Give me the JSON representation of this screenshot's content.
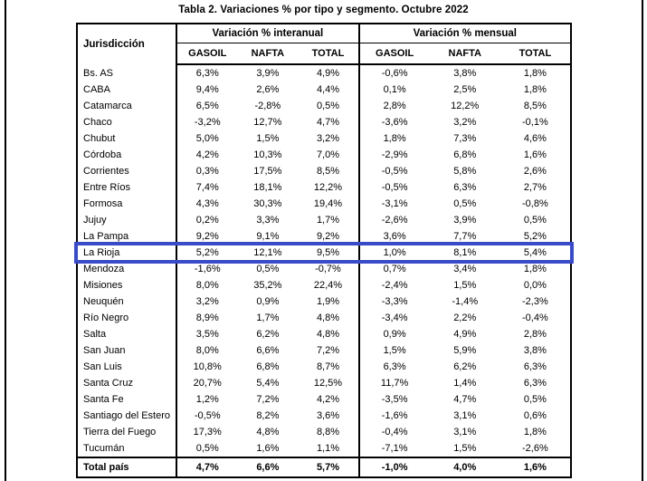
{
  "page": {
    "title": "Tabla 2. Variaciones % por tipo y segmento. Octubre 2022"
  },
  "table": {
    "col_jurisdiccion": "Jurisdicción",
    "groups": [
      {
        "label": "Variación % interanual",
        "columns": [
          "GASOIL",
          "NAFTA",
          "TOTAL"
        ]
      },
      {
        "label": "Variación % mensual",
        "columns": [
          "GASOIL",
          "NAFTA",
          "TOTAL"
        ]
      }
    ],
    "rows": [
      {
        "name": "Bs. AS",
        "values": [
          "6,3%",
          "3,9%",
          "4,9%",
          "-0,6%",
          "3,8%",
          "1,8%"
        ]
      },
      {
        "name": "CABA",
        "values": [
          "9,4%",
          "2,6%",
          "4,4%",
          "0,1%",
          "2,5%",
          "1,8%"
        ]
      },
      {
        "name": "Catamarca",
        "values": [
          "6,5%",
          "-2,8%",
          "0,5%",
          "2,8%",
          "12,2%",
          "8,5%"
        ]
      },
      {
        "name": "Chaco",
        "values": [
          "-3,2%",
          "12,7%",
          "4,7%",
          "-3,6%",
          "3,2%",
          "-0,1%"
        ]
      },
      {
        "name": "Chubut",
        "values": [
          "5,0%",
          "1,5%",
          "3,2%",
          "1,8%",
          "7,3%",
          "4,6%"
        ]
      },
      {
        "name": "Córdoba",
        "values": [
          "4,2%",
          "10,3%",
          "7,0%",
          "-2,9%",
          "6,8%",
          "1,6%"
        ]
      },
      {
        "name": "Corrientes",
        "values": [
          "0,3%",
          "17,5%",
          "8,5%",
          "-0,5%",
          "5,8%",
          "2,6%"
        ]
      },
      {
        "name": "Entre Ríos",
        "values": [
          "7,4%",
          "18,1%",
          "12,2%",
          "-0,5%",
          "6,3%",
          "2,7%"
        ]
      },
      {
        "name": "Formosa",
        "values": [
          "4,3%",
          "30,3%",
          "19,4%",
          "-3,1%",
          "0,5%",
          "-0,8%"
        ]
      },
      {
        "name": "Jujuy",
        "values": [
          "0,2%",
          "3,3%",
          "1,7%",
          "-2,6%",
          "3,9%",
          "0,5%"
        ]
      },
      {
        "name": "La Pampa",
        "values": [
          "9,2%",
          "9,1%",
          "9,2%",
          "3,6%",
          "7,7%",
          "5,2%"
        ]
      },
      {
        "name": "La Rioja",
        "values": [
          "5,2%",
          "12,1%",
          "9,5%",
          "1,0%",
          "8,1%",
          "5,4%"
        ],
        "highlighted": true
      },
      {
        "name": "Mendoza",
        "values": [
          "-1,6%",
          "0,5%",
          "-0,7%",
          "0,7%",
          "3,4%",
          "1,8%"
        ]
      },
      {
        "name": "Misiones",
        "values": [
          "8,0%",
          "35,2%",
          "22,4%",
          "-2,4%",
          "1,5%",
          "0,0%"
        ]
      },
      {
        "name": "Neuquén",
        "values": [
          "3,2%",
          "0,9%",
          "1,9%",
          "-3,3%",
          "-1,4%",
          "-2,3%"
        ]
      },
      {
        "name": "Río Negro",
        "values": [
          "8,9%",
          "1,7%",
          "4,8%",
          "-3,4%",
          "2,2%",
          "-0,4%"
        ]
      },
      {
        "name": "Salta",
        "values": [
          "3,5%",
          "6,2%",
          "4,8%",
          "0,9%",
          "4,9%",
          "2,8%"
        ]
      },
      {
        "name": "San Juan",
        "values": [
          "8,0%",
          "6,6%",
          "7,2%",
          "1,5%",
          "5,9%",
          "3,8%"
        ]
      },
      {
        "name": "San Luis",
        "values": [
          "10,8%",
          "6,8%",
          "8,7%",
          "6,3%",
          "6,2%",
          "6,3%"
        ]
      },
      {
        "name": "Santa Cruz",
        "values": [
          "20,7%",
          "5,4%",
          "12,5%",
          "11,7%",
          "1,4%",
          "6,3%"
        ]
      },
      {
        "name": "Santa Fe",
        "values": [
          "1,2%",
          "7,2%",
          "4,2%",
          "-3,5%",
          "4,7%",
          "0,5%"
        ]
      },
      {
        "name": "Santiago del Estero",
        "values": [
          "-0,5%",
          "8,2%",
          "3,6%",
          "-1,6%",
          "3,1%",
          "0,6%"
        ]
      },
      {
        "name": "Tierra del Fuego",
        "values": [
          "17,3%",
          "4,8%",
          "8,8%",
          "-0,4%",
          "3,1%",
          "1,8%"
        ]
      },
      {
        "name": "Tucumán",
        "values": [
          "0,5%",
          "1,6%",
          "1,1%",
          "-7,1%",
          "1,5%",
          "-2,6%"
        ]
      }
    ],
    "total_row": {
      "name": "Total país",
      "values": [
        "4,7%",
        "6,6%",
        "5,7%",
        "-1,0%",
        "4,0%",
        "1,6%"
      ]
    },
    "highlight_color": "#3A4BC8"
  }
}
